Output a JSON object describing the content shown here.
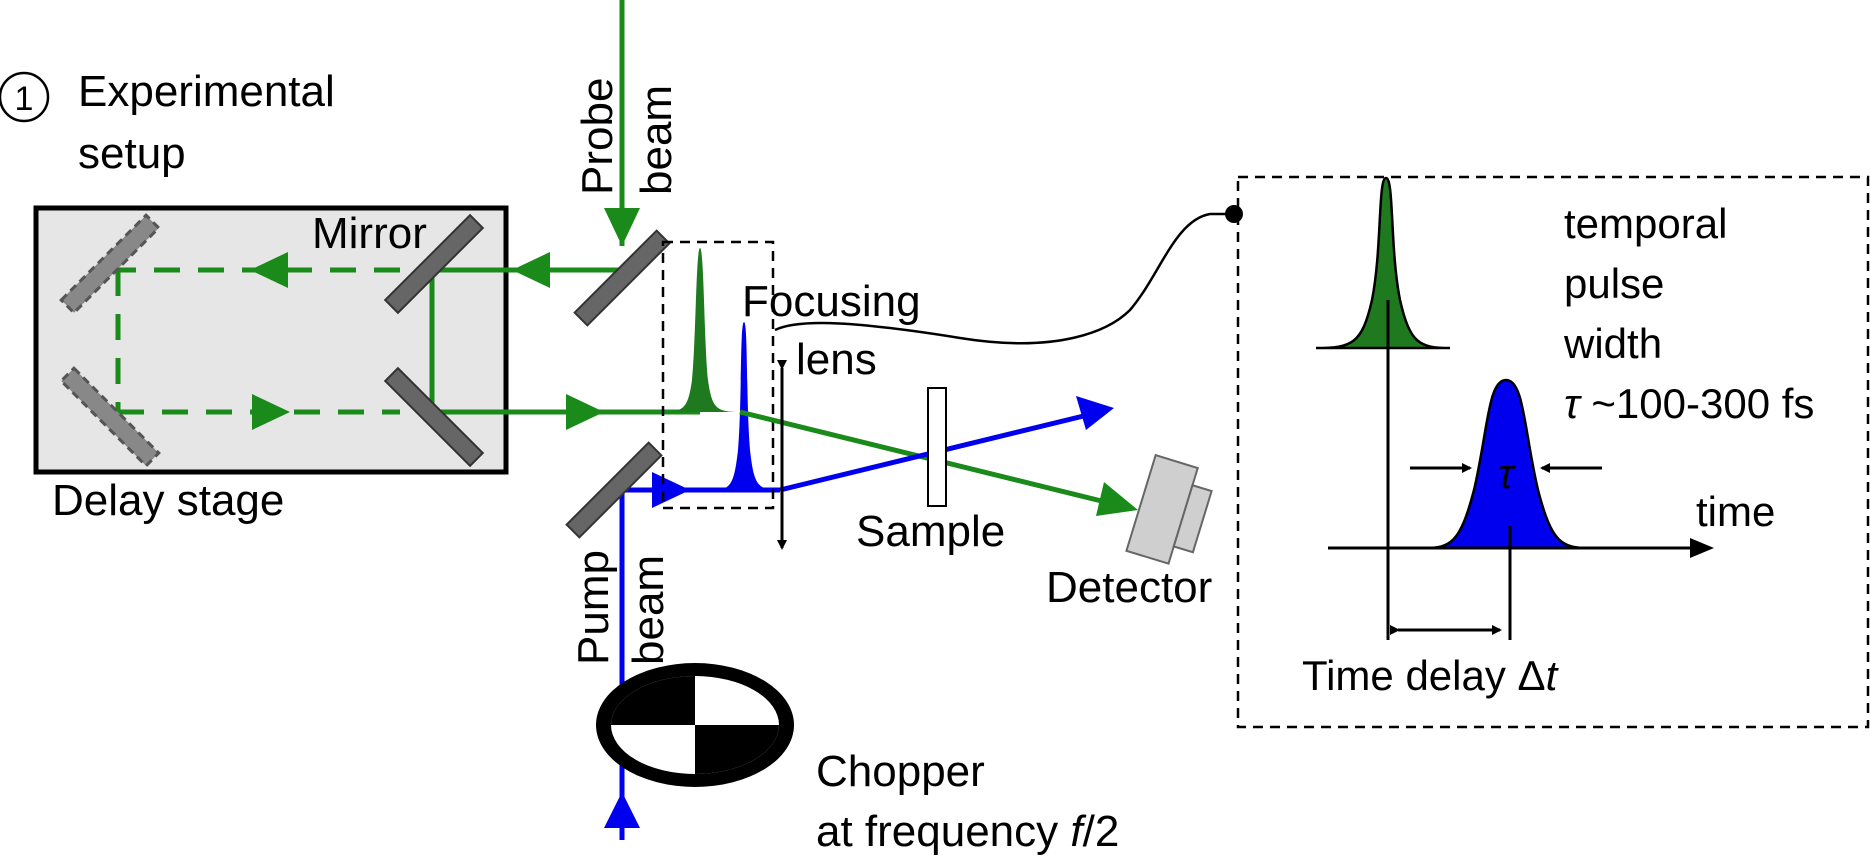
{
  "step_number": "1",
  "labels": {
    "title_line1": "Experimental",
    "title_line2": "setup",
    "probe_beam_line1": "Probe",
    "probe_beam_line2": "beam",
    "pump_beam_line1": "Pump",
    "pump_beam_line2": "beam",
    "mirror": "Mirror",
    "delay_stage": "Delay stage",
    "focusing_lens_line1": "Focusing",
    "focusing_lens_line2": "lens",
    "sample": "Sample",
    "detector": "Detector",
    "chopper_line1": "Chopper",
    "chopper_line2_prefix": "at frequency ",
    "chopper_line2_var": "f",
    "chopper_line2_suffix": "/2"
  },
  "inset": {
    "desc_line1": "temporal",
    "desc_line2": "pulse",
    "desc_line3": "width",
    "tau_symbol": "τ",
    "desc_line4_rest": " ~100-300 fs",
    "tau_marker": "τ",
    "time_axis": "time",
    "delay_prefix": "Time delay Δ",
    "delay_var": "t"
  },
  "colors": {
    "probe": "#1a8a1a",
    "probe_fill": "#1f7a1f",
    "pump": "#0000ee",
    "stage_fill": "#e6e6e6",
    "mirror": "#666666",
    "detector": "#cfcfcf"
  }
}
